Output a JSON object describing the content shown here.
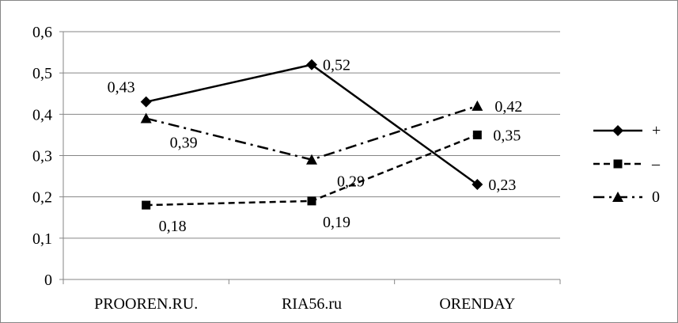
{
  "chart_data": {
    "type": "line",
    "title": "",
    "xlabel": "",
    "ylabel": "",
    "categories": [
      "PROOREN.RU.",
      "RIA56.ru",
      "ORENDAY"
    ],
    "ylim": [
      0,
      0.6
    ],
    "yticks": [
      0,
      0.1,
      0.2,
      0.3,
      0.4,
      0.5,
      0.6
    ],
    "ytick_labels": [
      "0",
      "0,1",
      "0,2",
      "0,3",
      "0,4",
      "0,5",
      "0,6"
    ],
    "grid": true,
    "legend_position": "right",
    "series": [
      {
        "name": "+",
        "values": [
          0.43,
          0.52,
          0.23
        ],
        "data_labels": [
          "0,43",
          "0,52",
          "0,23"
        ],
        "marker": "diamond",
        "line_style": "solid",
        "color": "#000000"
      },
      {
        "name": "–",
        "values": [
          0.18,
          0.19,
          0.35
        ],
        "data_labels": [
          "0,18",
          "0,19",
          "0,35"
        ],
        "marker": "square",
        "line_style": "dashed",
        "color": "#000000"
      },
      {
        "name": "0",
        "values": [
          0.39,
          0.29,
          0.42
        ],
        "data_labels": [
          "0,39",
          "0,29",
          "0,42"
        ],
        "marker": "triangle",
        "line_style": "dash-dot",
        "color": "#000000"
      }
    ]
  }
}
